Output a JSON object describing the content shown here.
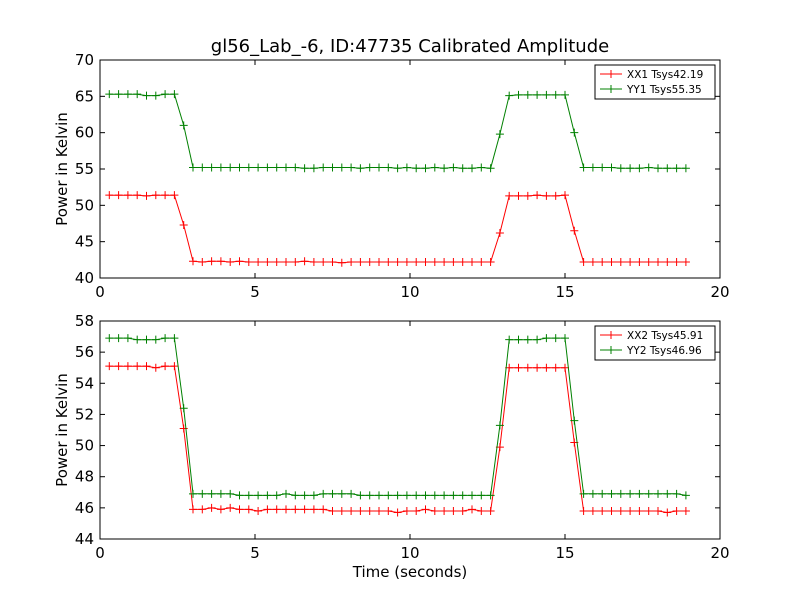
{
  "chart_data": {
    "type": "line",
    "title": "gl56_Lab_-6, ID:47735 Calibrated Amplitude",
    "xlabel": "Time (seconds)",
    "colors": {
      "red": "#ff0000",
      "green": "#008000"
    },
    "subplots": [
      {
        "ylabel": "Power in Kelvin",
        "xlim": [
          0,
          20
        ],
        "ylim": [
          40,
          70
        ],
        "xticks": [
          "0",
          "5",
          "10",
          "15",
          "20"
        ],
        "yticks": [
          "40",
          "45",
          "50",
          "55",
          "60",
          "65",
          "70"
        ],
        "legend_position": "top-right",
        "series": [
          {
            "name": "XX1 Tsys42.19",
            "color": "#ff0000",
            "x": [
              0.3,
              0.6,
              0.9,
              1.2,
              1.5,
              1.8,
              2.1,
              2.4,
              2.7,
              3.0,
              3.3,
              3.6,
              3.9,
              4.2,
              4.5,
              4.8,
              5.1,
              5.4,
              5.7,
              6.0,
              6.3,
              6.6,
              6.9,
              7.2,
              7.5,
              7.8,
              8.1,
              8.4,
              8.7,
              9.0,
              9.3,
              9.6,
              9.9,
              10.2,
              10.5,
              10.8,
              11.1,
              11.4,
              11.7,
              12.0,
              12.3,
              12.6,
              12.9,
              13.2,
              13.5,
              13.8,
              14.1,
              14.4,
              14.7,
              15.0,
              15.3,
              15.6,
              15.9,
              16.2,
              16.5,
              16.8,
              17.1,
              17.4,
              17.7,
              18.0,
              18.3,
              18.6,
              18.9
            ],
            "y": [
              51.4,
              51.4,
              51.4,
              51.4,
              51.3,
              51.4,
              51.4,
              51.4,
              47.3,
              42.3,
              42.2,
              42.3,
              42.3,
              42.2,
              42.3,
              42.2,
              42.2,
              42.2,
              42.2,
              42.2,
              42.2,
              42.3,
              42.2,
              42.2,
              42.2,
              42.1,
              42.2,
              42.2,
              42.2,
              42.2,
              42.2,
              42.2,
              42.2,
              42.2,
              42.2,
              42.2,
              42.2,
              42.2,
              42.2,
              42.2,
              42.2,
              42.2,
              46.2,
              51.3,
              51.3,
              51.3,
              51.4,
              51.3,
              51.3,
              51.4,
              46.5,
              42.2,
              42.2,
              42.2,
              42.2,
              42.2,
              42.2,
              42.2,
              42.2,
              42.2,
              42.2,
              42.2,
              42.2
            ]
          },
          {
            "name": "YY1 Tsys55.35",
            "color": "#008000",
            "x": [
              0.3,
              0.6,
              0.9,
              1.2,
              1.5,
              1.8,
              2.1,
              2.4,
              2.7,
              3.0,
              3.3,
              3.6,
              3.9,
              4.2,
              4.5,
              4.8,
              5.1,
              5.4,
              5.7,
              6.0,
              6.3,
              6.6,
              6.9,
              7.2,
              7.5,
              7.8,
              8.1,
              8.4,
              8.7,
              9.0,
              9.3,
              9.6,
              9.9,
              10.2,
              10.5,
              10.8,
              11.1,
              11.4,
              11.7,
              12.0,
              12.3,
              12.6,
              12.9,
              13.2,
              13.5,
              13.8,
              14.1,
              14.4,
              14.7,
              15.0,
              15.3,
              15.6,
              15.9,
              16.2,
              16.5,
              16.8,
              17.1,
              17.4,
              17.7,
              18.0,
              18.3,
              18.6,
              18.9
            ],
            "y": [
              65.3,
              65.3,
              65.3,
              65.3,
              65.1,
              65.1,
              65.3,
              65.3,
              61.0,
              55.2,
              55.2,
              55.2,
              55.2,
              55.2,
              55.2,
              55.2,
              55.2,
              55.2,
              55.2,
              55.2,
              55.2,
              55.1,
              55.1,
              55.2,
              55.2,
              55.2,
              55.2,
              55.1,
              55.2,
              55.2,
              55.2,
              55.1,
              55.2,
              55.1,
              55.1,
              55.2,
              55.1,
              55.2,
              55.1,
              55.1,
              55.2,
              55.1,
              59.8,
              65.1,
              65.2,
              65.2,
              65.2,
              65.2,
              65.2,
              65.2,
              60.0,
              55.2,
              55.2,
              55.2,
              55.2,
              55.1,
              55.1,
              55.1,
              55.2,
              55.1,
              55.1,
              55.1,
              55.1
            ]
          }
        ]
      },
      {
        "ylabel": "Power in Kelvin",
        "xlabel": "Time (seconds)",
        "xlim": [
          0,
          20
        ],
        "ylim": [
          44,
          58
        ],
        "xticks": [
          "0",
          "5",
          "10",
          "15",
          "20"
        ],
        "yticks": [
          "44",
          "46",
          "48",
          "50",
          "52",
          "54",
          "56",
          "58"
        ],
        "legend_position": "top-right",
        "series": [
          {
            "name": "XX2 Tsys45.91",
            "color": "#ff0000",
            "x": [
              0.3,
              0.6,
              0.9,
              1.2,
              1.5,
              1.8,
              2.1,
              2.4,
              2.7,
              3.0,
              3.3,
              3.6,
              3.9,
              4.2,
              4.5,
              4.8,
              5.1,
              5.4,
              5.7,
              6.0,
              6.3,
              6.6,
              6.9,
              7.2,
              7.5,
              7.8,
              8.1,
              8.4,
              8.7,
              9.0,
              9.3,
              9.6,
              9.9,
              10.2,
              10.5,
              10.8,
              11.1,
              11.4,
              11.7,
              12.0,
              12.3,
              12.6,
              12.9,
              13.2,
              13.5,
              13.8,
              14.1,
              14.4,
              14.7,
              15.0,
              15.3,
              15.6,
              15.9,
              16.2,
              16.5,
              16.8,
              17.1,
              17.4,
              17.7,
              18.0,
              18.3,
              18.6,
              18.9
            ],
            "y": [
              55.1,
              55.1,
              55.1,
              55.1,
              55.1,
              55.0,
              55.1,
              55.1,
              51.1,
              45.9,
              45.9,
              46.0,
              45.9,
              46.0,
              45.9,
              45.9,
              45.8,
              45.9,
              45.9,
              45.9,
              45.9,
              45.9,
              45.9,
              45.9,
              45.8,
              45.8,
              45.8,
              45.8,
              45.8,
              45.8,
              45.8,
              45.7,
              45.8,
              45.8,
              45.9,
              45.8,
              45.8,
              45.8,
              45.8,
              45.9,
              45.8,
              45.8,
              49.9,
              55.0,
              55.0,
              55.0,
              55.0,
              55.0,
              55.0,
              55.0,
              50.2,
              45.8,
              45.8,
              45.8,
              45.8,
              45.8,
              45.8,
              45.8,
              45.8,
              45.8,
              45.7,
              45.8,
              45.8
            ]
          },
          {
            "name": "YY2 Tsys46.96",
            "color": "#008000",
            "x": [
              0.3,
              0.6,
              0.9,
              1.2,
              1.5,
              1.8,
              2.1,
              2.4,
              2.7,
              3.0,
              3.3,
              3.6,
              3.9,
              4.2,
              4.5,
              4.8,
              5.1,
              5.4,
              5.7,
              6.0,
              6.3,
              6.6,
              6.9,
              7.2,
              7.5,
              7.8,
              8.1,
              8.4,
              8.7,
              9.0,
              9.3,
              9.6,
              9.9,
              10.2,
              10.5,
              10.8,
              11.1,
              11.4,
              11.7,
              12.0,
              12.3,
              12.6,
              12.9,
              13.2,
              13.5,
              13.8,
              14.1,
              14.4,
              14.7,
              15.0,
              15.3,
              15.6,
              15.9,
              16.2,
              16.5,
              16.8,
              17.1,
              17.4,
              17.7,
              18.0,
              18.3,
              18.6,
              18.9
            ],
            "y": [
              56.9,
              56.9,
              56.9,
              56.8,
              56.8,
              56.8,
              56.9,
              56.9,
              52.4,
              46.9,
              46.9,
              46.9,
              46.9,
              46.9,
              46.8,
              46.8,
              46.8,
              46.8,
              46.8,
              46.9,
              46.8,
              46.8,
              46.8,
              46.9,
              46.9,
              46.9,
              46.9,
              46.8,
              46.8,
              46.8,
              46.8,
              46.8,
              46.8,
              46.8,
              46.8,
              46.8,
              46.8,
              46.8,
              46.8,
              46.8,
              46.8,
              46.8,
              51.3,
              56.8,
              56.8,
              56.8,
              56.8,
              56.9,
              56.9,
              56.9,
              51.6,
              46.9,
              46.9,
              46.9,
              46.9,
              46.9,
              46.9,
              46.9,
              46.9,
              46.9,
              46.9,
              46.9,
              46.8
            ]
          }
        ]
      }
    ]
  }
}
